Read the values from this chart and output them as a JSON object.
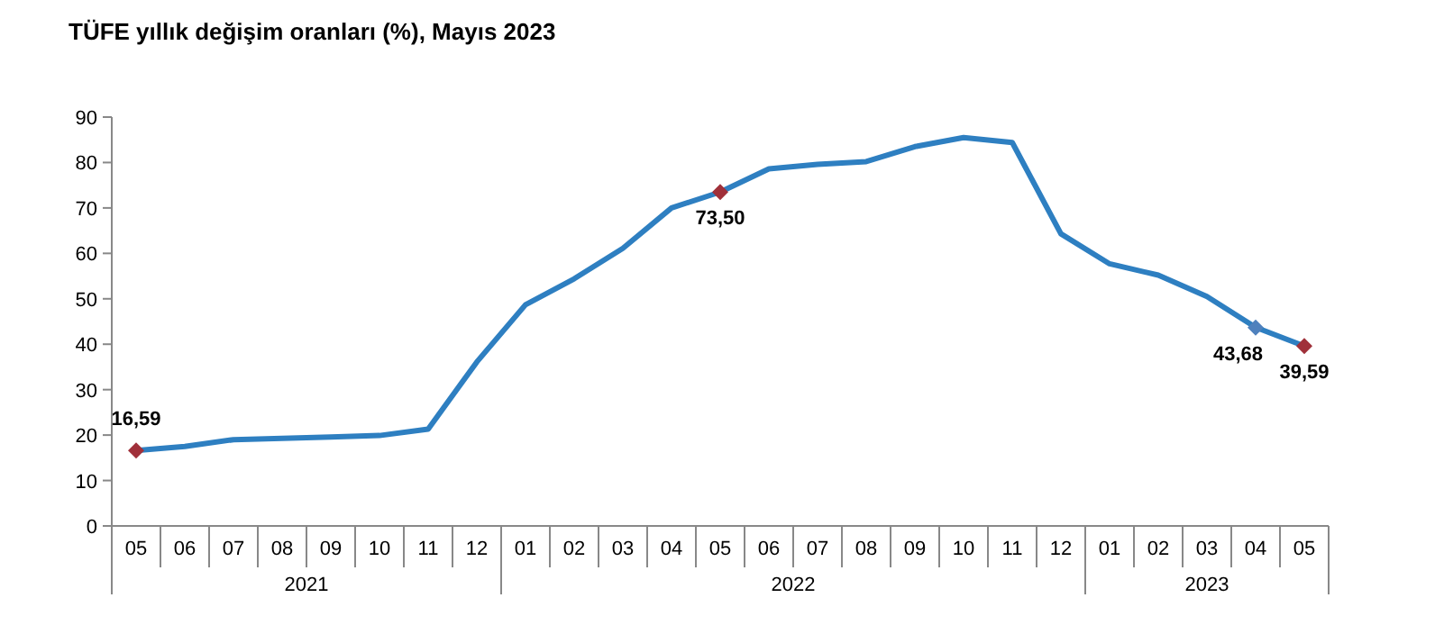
{
  "chart_data": {
    "type": "line",
    "title": "TÜFE yıllık değişim oranları (%), Mayıs 2023",
    "categories": [
      "05",
      "06",
      "07",
      "08",
      "09",
      "10",
      "11",
      "12",
      "01",
      "02",
      "03",
      "04",
      "05",
      "06",
      "07",
      "08",
      "09",
      "10",
      "11",
      "12",
      "01",
      "02",
      "03",
      "04",
      "05"
    ],
    "annotations": [
      "2021",
      "2022",
      "2023"
    ],
    "ylim": [
      0,
      90
    ],
    "yticks": [
      0,
      10,
      20,
      30,
      40,
      50,
      60,
      70,
      80,
      90
    ],
    "series": [
      {
        "color": "#2e7fc1",
        "line_style": "solid",
        "values": [
          16.6,
          17.5,
          19.0,
          19.3,
          19.6,
          19.9,
          21.3,
          36.1,
          48.7,
          54.4,
          61.1,
          70.0,
          73.5,
          78.6,
          79.6,
          80.2,
          83.5,
          85.5,
          84.4,
          64.3,
          57.7,
          55.2,
          50.5,
          43.7,
          39.6
        ]
      },
      {
        "type": "scatter",
        "marker": "diamond",
        "colors": [
          "#a0303a",
          null,
          null,
          null,
          null,
          null,
          null,
          null,
          null,
          null,
          null,
          null,
          "#a0303a",
          null,
          null,
          null,
          null,
          null,
          null,
          null,
          null,
          null,
          null,
          "#4f81bd",
          "#a0303a"
        ],
        "values": [
          16.59,
          null,
          null,
          null,
          null,
          null,
          null,
          null,
          null,
          null,
          null,
          null,
          73.5,
          null,
          null,
          null,
          null,
          null,
          null,
          null,
          null,
          null,
          null,
          43.68,
          39.59
        ],
        "value_labels": [
          "16,59",
          null,
          null,
          null,
          null,
          null,
          null,
          null,
          null,
          null,
          null,
          null,
          "73,50",
          null,
          null,
          null,
          null,
          null,
          null,
          null,
          null,
          null,
          null,
          "43,68",
          "39,59"
        ]
      }
    ]
  }
}
